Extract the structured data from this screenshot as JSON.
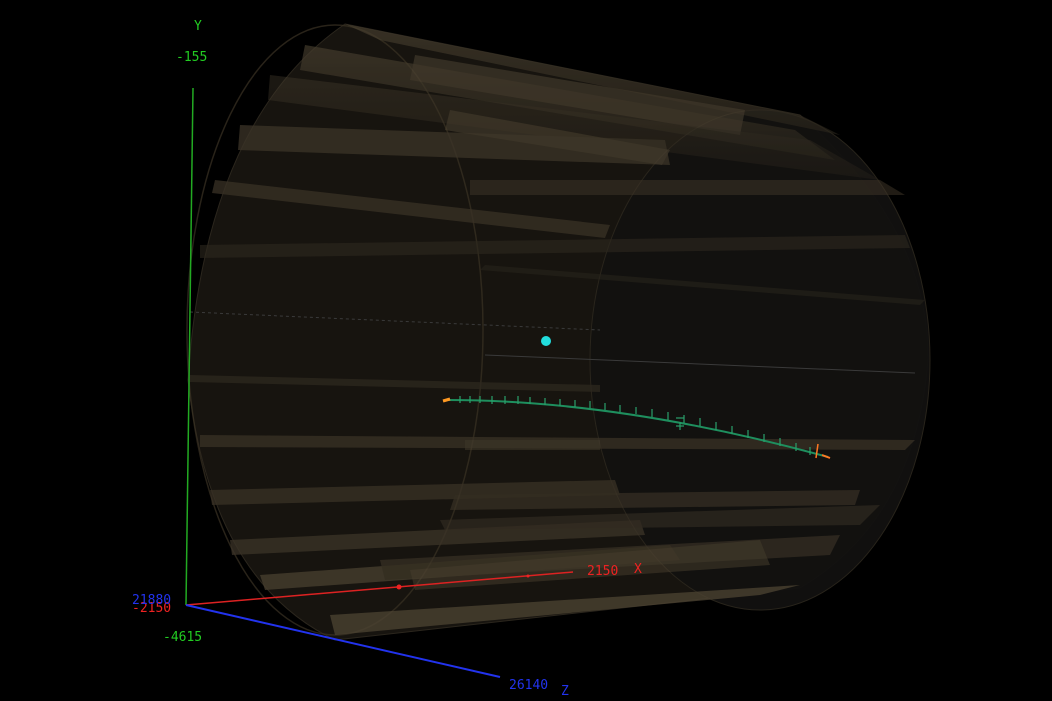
{
  "axes": {
    "y": {
      "name": "Y",
      "max": "-155",
      "min": "-4615",
      "color": "#22cc22"
    },
    "x": {
      "name": "X",
      "max": "2150",
      "min": "-2150",
      "color": "#ee2222"
    },
    "z": {
      "name": "Z",
      "max": "26140",
      "min": "21880",
      "color": "#2233ee"
    }
  },
  "colors": {
    "background": "#000000",
    "detector": "#3a3224",
    "track": "#1e8f5e",
    "vertex": "#22dddd",
    "endpoint": "#ff7722"
  }
}
